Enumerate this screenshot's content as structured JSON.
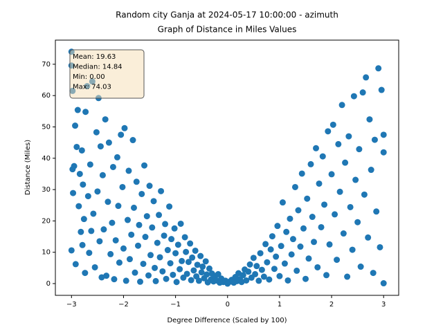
{
  "chart_data": {
    "type": "scatter",
    "title": [
      "Random city Ganja at 2024-05-17 10:00:00  - azimuth",
      "Graph of Distance in Miles Values"
    ],
    "x_label": "Degree Difference (Scaled by 100)",
    "y_label": "Distance (Miles)",
    "annotation": [
      "Mean: 19.63",
      "Median: 14.84",
      "Min: 0.00",
      "Max: 74.03"
    ],
    "color": "#1f77b4",
    "xlim": [
      -3.31,
      3.29
    ],
    "ylim": [
      -3.75,
      77.7
    ],
    "xticks": [
      {
        "value": -3,
        "label": "−3"
      },
      {
        "value": -2,
        "label": "−2"
      },
      {
        "value": -1,
        "label": "−1"
      },
      0,
      1,
      2,
      3
    ],
    "yticks": [
      0,
      10,
      20,
      30,
      40,
      50,
      60,
      70
    ],
    "x": [
      -3.0,
      -3.0,
      -2.98,
      -3.0,
      -2.97,
      -2.98,
      -2.95,
      -2.93,
      -2.92,
      -2.9,
      -2.88,
      -2.86,
      -2.84,
      -2.82,
      -2.8,
      -2.79,
      -2.78,
      -2.76,
      -2.74,
      -2.73,
      -2.7,
      -2.68,
      -2.66,
      -2.64,
      -2.62,
      -2.6,
      -2.58,
      -2.55,
      -2.52,
      -2.5,
      -2.48,
      -2.46,
      -2.44,
      -2.42,
      -2.4,
      -2.38,
      -2.35,
      -2.33,
      -2.3,
      -2.28,
      -2.25,
      -2.22,
      -2.2,
      -2.18,
      -2.15,
      -2.12,
      -2.1,
      -2.08,
      -2.05,
      -2.02,
      -2.0,
      -1.98,
      -1.95,
      -1.92,
      -1.9,
      -1.88,
      -1.85,
      -1.82,
      -1.8,
      -1.78,
      -1.75,
      -1.72,
      -1.7,
      -1.68,
      -1.65,
      -1.62,
      -1.6,
      -1.58,
      -1.55,
      -1.52,
      -1.5,
      -1.48,
      -1.45,
      -1.42,
      -1.4,
      -1.38,
      -1.35,
      -1.32,
      -1.3,
      -1.28,
      -1.25,
      -1.22,
      -1.2,
      -1.18,
      -1.15,
      -1.12,
      -1.1,
      -1.08,
      -1.05,
      -1.02,
      -1.0,
      -0.98,
      -0.95,
      -0.92,
      -0.9,
      -0.88,
      -0.85,
      -0.82,
      -0.8,
      -0.78,
      -0.75,
      -0.72,
      -0.7,
      -0.68,
      -0.65,
      -0.62,
      -0.6,
      -0.58,
      -0.55,
      -0.52,
      -0.5,
      -0.48,
      -0.45,
      -0.42,
      -0.4,
      -0.38,
      -0.35,
      -0.32,
      -0.3,
      -0.27,
      -0.24,
      -0.21,
      -0.18,
      -0.15,
      -0.12,
      -0.08,
      -0.04,
      0.0,
      0.04,
      0.08,
      0.12,
      0.15,
      0.18,
      0.21,
      0.24,
      0.27,
      0.3,
      0.33,
      0.36,
      0.4,
      0.43,
      0.46,
      0.5,
      0.53,
      0.56,
      0.6,
      0.63,
      0.66,
      0.7,
      0.73,
      0.76,
      0.8,
      0.83,
      0.86,
      0.9,
      0.93,
      0.96,
      1.0,
      1.03,
      1.06,
      1.1,
      1.13,
      1.16,
      1.2,
      1.23,
      1.26,
      1.3,
      1.33,
      1.36,
      1.4,
      1.43,
      1.46,
      1.5,
      1.53,
      1.56,
      1.6,
      1.63,
      1.66,
      1.7,
      1.73,
      1.76,
      1.8,
      1.83,
      1.86,
      1.9,
      1.93,
      1.96,
      2.0,
      2.03,
      2.06,
      2.1,
      2.13,
      2.16,
      2.2,
      2.23,
      2.26,
      2.3,
      2.33,
      2.36,
      2.4,
      2.43,
      2.46,
      2.5,
      2.53,
      2.56,
      2.6,
      2.63,
      2.66,
      2.7,
      2.73,
      2.76,
      2.8,
      2.83,
      2.86,
      2.9,
      2.93,
      2.96,
      3.0,
      3.0,
      3.0
    ],
    "values": [
      74.0,
      69.6,
      61.5,
      10.6,
      28.9,
      36.5,
      37.5,
      50.4,
      6.2,
      43.6,
      55.4,
      24.7,
      35.0,
      16.5,
      42.5,
      12.3,
      31.6,
      20.6,
      3.4,
      54.8,
      63.0,
      27.9,
      9.8,
      38.0,
      16.8,
      64.5,
      22.3,
      5.2,
      48.3,
      29.4,
      59.2,
      13.5,
      43.8,
      2.0,
      34.6,
      17.3,
      52.4,
      2.5,
      26.1,
      45.0,
      9.4,
      19.4,
      37.2,
      1.4,
      13.8,
      40.3,
      24.8,
      6.7,
      47.5,
      30.8,
      11.2,
      49.6,
      0.9,
      20.3,
      36.0,
      7.8,
      15.6,
      45.8,
      24.2,
      3.5,
      32.5,
      12.1,
      18.7,
      0.6,
      28.6,
      6.3,
      37.7,
      14.9,
      21.5,
      2.6,
      31.2,
      9.1,
      17.9,
      26.3,
      5.0,
      0.8,
      13.0,
      21.9,
      8.4,
      29.5,
      3.9,
      15.3,
      19.0,
      1.5,
      10.7,
      24.6,
      6.5,
      14.2,
      2.8,
      17.6,
      9.7,
      0.5,
      12.4,
      4.6,
      19.1,
      7.2,
      1.9,
      14.8,
      10.1,
      3.1,
      6.9,
      12.8,
      1.1,
      8.3,
      4.2,
      10.5,
      2.3,
      6.0,
      0.9,
      8.8,
      3.6,
      5.4,
      1.7,
      7.1,
      2.9,
      0.4,
      4.8,
      1.3,
      3.2,
      0.7,
      2.4,
      1.0,
      3.0,
      0.3,
      1.6,
      0.5,
      0.9,
      0.0,
      0.6,
      1.2,
      0.3,
      2.1,
      0.8,
      3.3,
      1.4,
      0.5,
      2.7,
      4.5,
      1.0,
      3.8,
      6.1,
      1.9,
      8.2,
      3.0,
      5.6,
      0.9,
      9.7,
      4.4,
      2.2,
      12.6,
      6.8,
      1.3,
      10.9,
      15.1,
      4.7,
      8.6,
      18.4,
      2.4,
      12.0,
      25.9,
      6.4,
      16.5,
      1.0,
      20.7,
      9.3,
      14.2,
      30.8,
      4.1,
      23.4,
      11.8,
      35.1,
      17.6,
      1.5,
      27.1,
      8.0,
      38.1,
      21.3,
      13.3,
      43.2,
      5.2,
      31.9,
      18.0,
      40.6,
      25.2,
      2.7,
      48.6,
      12.5,
      34.9,
      50.7,
      22.1,
      7.6,
      44.5,
      29.3,
      57.0,
      16.0,
      38.6,
      2.2,
      47.0,
      24.4,
      10.8,
      59.8,
      33.1,
      19.6,
      42.9,
      5.4,
      61.0,
      28.4,
      65.8,
      14.7,
      52.4,
      36.3,
      3.4,
      45.9,
      23.0,
      68.7,
      11.6,
      61.8,
      47.5,
      41.9,
      0.1
    ]
  }
}
